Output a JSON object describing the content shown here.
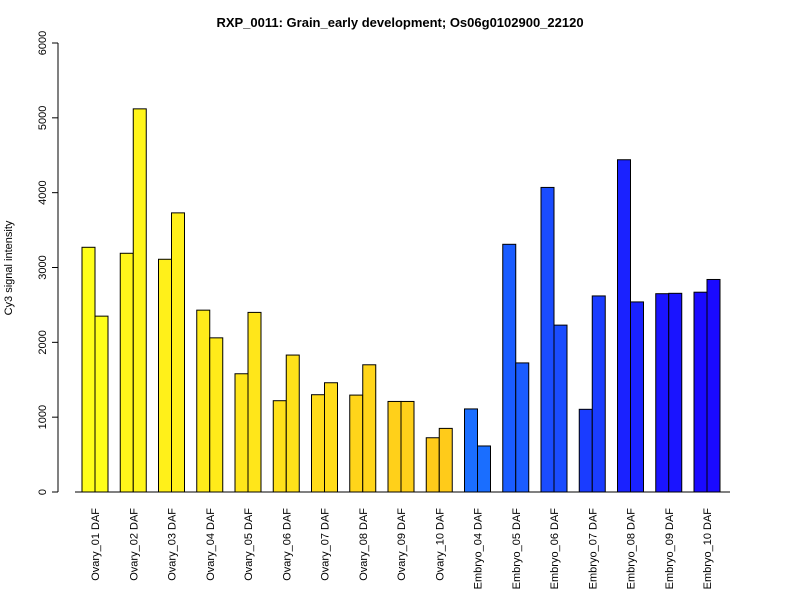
{
  "chart_data": {
    "type": "bar",
    "title": "RXP_0011: Grain_early development; Os06g0102900_22120",
    "xlabel": "",
    "ylabel": "Cy3 signal intensity",
    "ylim": [
      0,
      6000
    ],
    "yticks": [
      0,
      1000,
      2000,
      3000,
      4000,
      5000,
      6000
    ],
    "grid": false,
    "legend": "none",
    "categories": [
      "Ovary_01 DAF",
      "Ovary_02 DAF",
      "Ovary_03 DAF",
      "Ovary_04 DAF",
      "Ovary_05 DAF",
      "Ovary_06 DAF",
      "Ovary_07 DAF",
      "Ovary_08 DAF",
      "Ovary_09 DAF",
      "Ovary_10 DAF",
      "Embryo_04 DAF",
      "Embryo_05 DAF",
      "Embryo_06 DAF",
      "Embryo_07 DAF",
      "Embryo_08 DAF",
      "Embryo_09 DAF",
      "Embryo_10 DAF"
    ],
    "colors": [
      "#FFFF1A",
      "#FFF51A",
      "#FFF01A",
      "#FFEB1A",
      "#FFE61A",
      "#FFE11A",
      "#FFDC1A",
      "#FFD51A",
      "#FFD01A",
      "#FFCB1A",
      "#1A6EFF",
      "#1A5CFF",
      "#1A4CFF",
      "#1A3CFF",
      "#1A22FF",
      "#1A14FF",
      "#1A0AFF"
    ],
    "series": [
      {
        "values": [
          3270,
          3190,
          3110,
          2430,
          1580,
          1220,
          1300,
          1295,
          1210,
          725,
          1110,
          3310,
          4070,
          1105,
          4440,
          2650,
          2670
        ]
      },
      {
        "values": [
          2350,
          5120,
          3730,
          2060,
          2400,
          1830,
          1460,
          1700,
          1210,
          850,
          615,
          1725,
          2230,
          2620,
          2540,
          2655,
          2840
        ]
      }
    ]
  }
}
